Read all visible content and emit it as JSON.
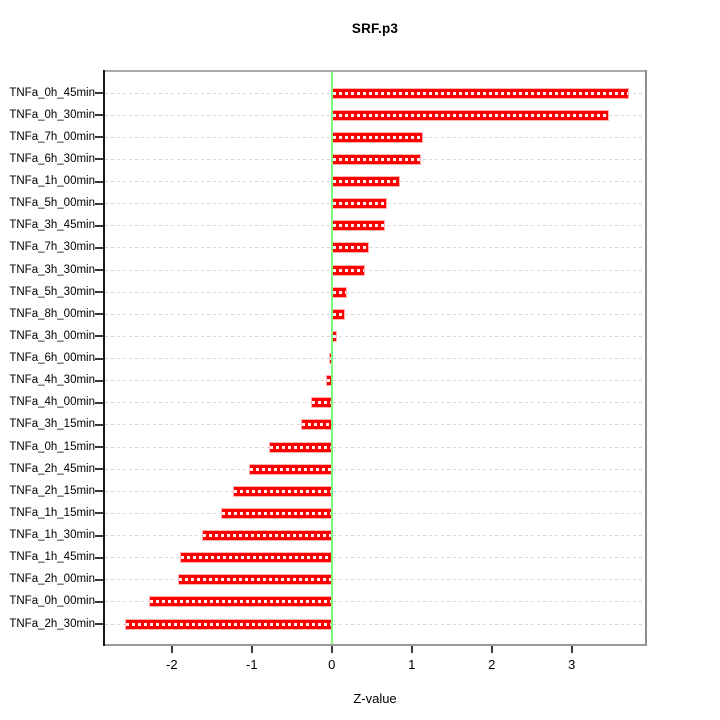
{
  "title": "SRF.p3",
  "xlabel": "Z-value",
  "colors": {
    "bar_fill": "#ff0000",
    "bar_edge": "#ffb0b0",
    "zero_line": "#7df87d",
    "grid": "#d8d8d8",
    "box_top": "#aaaaaa",
    "box_right": "#909090",
    "box_bottom": "#999999",
    "box_left": "#1a1a1a",
    "tick": "#3a3a3a"
  },
  "chart_data": {
    "type": "bar",
    "orientation": "horizontal",
    "title": "SRF.p3",
    "xlabel": "Z-value",
    "ylabel": "",
    "xlim": [
      -2.86,
      3.94
    ],
    "xticks": [
      -2,
      -1,
      0,
      1,
      2,
      3
    ],
    "grid": true,
    "zero_line": true,
    "legend": false,
    "categories": [
      "TNFa_0h_45min",
      "TNFa_0h_30min",
      "TNFa_7h_00min",
      "TNFa_6h_30min",
      "TNFa_1h_00min",
      "TNFa_5h_00min",
      "TNFa_3h_45min",
      "TNFa_7h_30min",
      "TNFa_3h_30min",
      "TNFa_5h_30min",
      "TNFa_8h_00min",
      "TNFa_3h_00min",
      "TNFa_6h_00min",
      "TNFa_4h_30min",
      "TNFa_4h_00min",
      "TNFa_3h_15min",
      "TNFa_0h_15min",
      "TNFa_2h_45min",
      "TNFa_2h_15min",
      "TNFa_1h_15min",
      "TNFa_1h_30min",
      "TNFa_1h_45min",
      "TNFa_2h_00min",
      "TNFa_0h_00min",
      "TNFa_2h_30min"
    ],
    "values": [
      3.71,
      3.46,
      1.14,
      1.12,
      0.85,
      0.69,
      0.66,
      0.46,
      0.42,
      0.19,
      0.16,
      0.07,
      -0.03,
      -0.07,
      -0.26,
      -0.39,
      -0.78,
      -1.03,
      -1.23,
      -1.38,
      -1.62,
      -1.9,
      -1.92,
      -2.29,
      -2.58
    ]
  }
}
